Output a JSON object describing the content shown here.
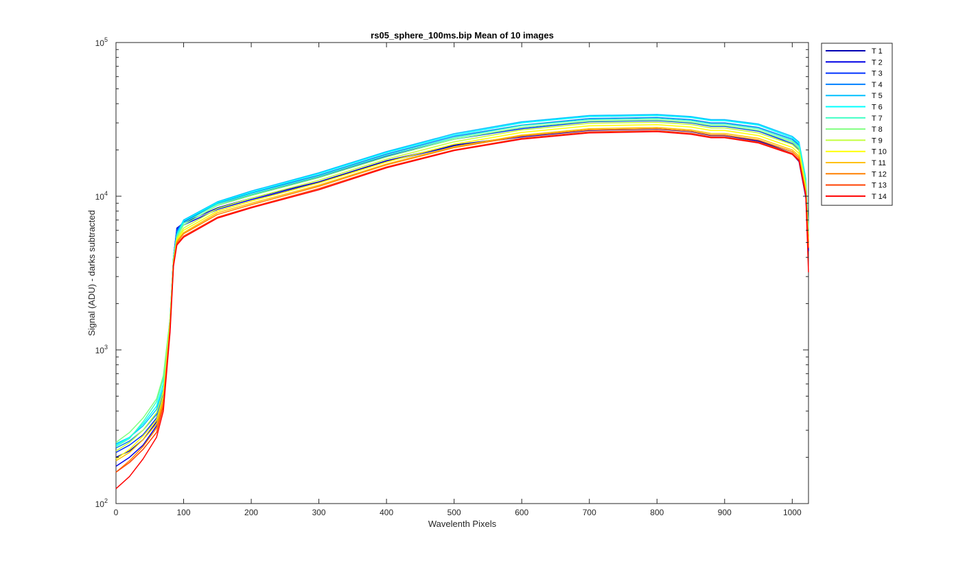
{
  "chart_data": {
    "type": "line",
    "title": "rs05_sphere_100ms.bip  Mean of 10 images",
    "xlabel": "Wavelenth Pixels",
    "ylabel": "Signal (ADU) - darks subtracted",
    "xlim": [
      0,
      1024
    ],
    "ylim": [
      100,
      100000
    ],
    "yscale": "log",
    "grid": false,
    "legend_position": "outside-top-right",
    "x_ticks": [
      "0",
      "100",
      "200",
      "300",
      "400",
      "500",
      "600",
      "700",
      "800",
      "900",
      "1000"
    ],
    "x_tick_values": [
      0,
      100,
      200,
      300,
      400,
      500,
      600,
      700,
      800,
      900,
      1000
    ],
    "y_ticks": [
      {
        "value": 100,
        "base": "10",
        "exp": "2"
      },
      {
        "value": 1000,
        "base": "10",
        "exp": "3"
      },
      {
        "value": 10000,
        "base": "10",
        "exp": "4"
      },
      {
        "value": 100000,
        "base": "10",
        "exp": "5"
      }
    ],
    "x": [
      0,
      20,
      40,
      60,
      70,
      80,
      85,
      90,
      100,
      150,
      200,
      300,
      400,
      500,
      600,
      700,
      800,
      850,
      880,
      900,
      950,
      1000,
      1010,
      1020,
      1024
    ],
    "series": [
      {
        "name": "T 1",
        "color": "#0000b4",
        "values": [
          200,
          220,
          260,
          340,
          480,
          1500,
          4000,
          6200,
          6700,
          8400,
          9700,
          12400,
          17000,
          21500,
          24500,
          27000,
          27500,
          26500,
          25000,
          25000,
          23000,
          19000,
          17000,
          10000,
          4500
        ]
      },
      {
        "name": "T 2",
        "color": "#0000e6",
        "values": [
          175,
          200,
          240,
          320,
          470,
          1500,
          4000,
          6000,
          6500,
          8200,
          9500,
          12200,
          16800,
          21200,
          24300,
          26800,
          27300,
          26300,
          24800,
          24800,
          22800,
          18800,
          16800,
          9800,
          4400
        ]
      },
      {
        "name": "T 3",
        "color": "#0032ff",
        "values": [
          215,
          240,
          280,
          360,
          500,
          1550,
          4000,
          6100,
          6800,
          8900,
          10200,
          13300,
          18200,
          23500,
          27500,
          30500,
          31000,
          30000,
          28500,
          28500,
          26500,
          22000,
          20000,
          11500,
          5000
        ]
      },
      {
        "name": "T 4",
        "color": "#0080ff",
        "values": [
          230,
          255,
          300,
          380,
          520,
          1550,
          4000,
          5900,
          6900,
          9000,
          10500,
          13700,
          18800,
          24500,
          29000,
          32000,
          32500,
          31500,
          30000,
          30000,
          28000,
          23500,
          21500,
          12500,
          5500
        ]
      },
      {
        "name": "T 5",
        "color": "#00c0ff",
        "values": [
          245,
          270,
          320,
          410,
          560,
          1600,
          4000,
          5700,
          7000,
          9200,
          10800,
          14200,
          19500,
          25500,
          30500,
          33500,
          34000,
          33000,
          31500,
          31500,
          29500,
          24500,
          22500,
          13000,
          6000
        ]
      },
      {
        "name": "T 6",
        "color": "#00ffff",
        "values": [
          240,
          270,
          330,
          430,
          600,
          1600,
          4000,
          5600,
          6900,
          9100,
          10600,
          14000,
          19200,
          25000,
          30000,
          33000,
          33500,
          32500,
          31000,
          31000,
          29000,
          24000,
          22000,
          12800,
          6000
        ]
      },
      {
        "name": "T 7",
        "color": "#3cffc3",
        "values": [
          235,
          265,
          340,
          460,
          650,
          1600,
          3900,
          5500,
          6700,
          8900,
          10300,
          13500,
          18500,
          24000,
          28800,
          31500,
          32000,
          31000,
          29500,
          29500,
          27500,
          23000,
          21000,
          12200,
          5800
        ]
      },
      {
        "name": "T 8",
        "color": "#80ff80",
        "values": [
          250,
          290,
          360,
          480,
          680,
          1600,
          3900,
          5400,
          6500,
          8700,
          10100,
          13200,
          18000,
          23500,
          28000,
          30800,
          31300,
          30300,
          28800,
          28800,
          26800,
          22500,
          20500,
          12000,
          5600
        ]
      },
      {
        "name": "T 9",
        "color": "#c3ff3c",
        "values": [
          220,
          250,
          300,
          390,
          540,
          1500,
          3800,
          5300,
          6200,
          8300,
          9700,
          12700,
          17400,
          22600,
          27000,
          29800,
          30300,
          29300,
          27800,
          27800,
          25800,
          21700,
          19800,
          11600,
          5400
        ]
      },
      {
        "name": "T 10",
        "color": "#ffff00",
        "values": [
          195,
          225,
          275,
          350,
          500,
          1500,
          3800,
          5200,
          6000,
          8000,
          9300,
          12200,
          16700,
          21800,
          26000,
          28700,
          29200,
          28200,
          26800,
          26800,
          24800,
          20800,
          19000,
          11200,
          5200
        ]
      },
      {
        "name": "T 11",
        "color": "#ffc000",
        "values": [
          190,
          215,
          260,
          330,
          470,
          1400,
          3700,
          5100,
          5800,
          7800,
          9000,
          11800,
          16200,
          21000,
          25000,
          27500,
          28000,
          27000,
          25600,
          25600,
          23800,
          20000,
          18300,
          10800,
          5000
        ]
      },
      {
        "name": "T 12",
        "color": "#ff8000",
        "values": [
          160,
          190,
          235,
          310,
          450,
          1400,
          3700,
          5000,
          5700,
          7600,
          8800,
          11600,
          16000,
          20700,
          24600,
          27000,
          27500,
          26500,
          25000,
          25000,
          23200,
          19500,
          17800,
          10500,
          4800
        ]
      },
      {
        "name": "T 13",
        "color": "#ff4000",
        "values": [
          160,
          185,
          225,
          290,
          430,
          1400,
          3600,
          4900,
          5500,
          7300,
          8500,
          11200,
          15500,
          20000,
          23800,
          26200,
          26700,
          25700,
          24300,
          24300,
          22500,
          19000,
          17300,
          10200,
          4600
        ]
      },
      {
        "name": "T 14",
        "color": "#ff0000",
        "values": [
          125,
          150,
          195,
          270,
          400,
          1300,
          3500,
          4800,
          5400,
          7200,
          8400,
          11000,
          15300,
          19800,
          23500,
          25800,
          26300,
          25300,
          24000,
          24000,
          22200,
          18700,
          17000,
          10000,
          3200
        ]
      }
    ]
  }
}
